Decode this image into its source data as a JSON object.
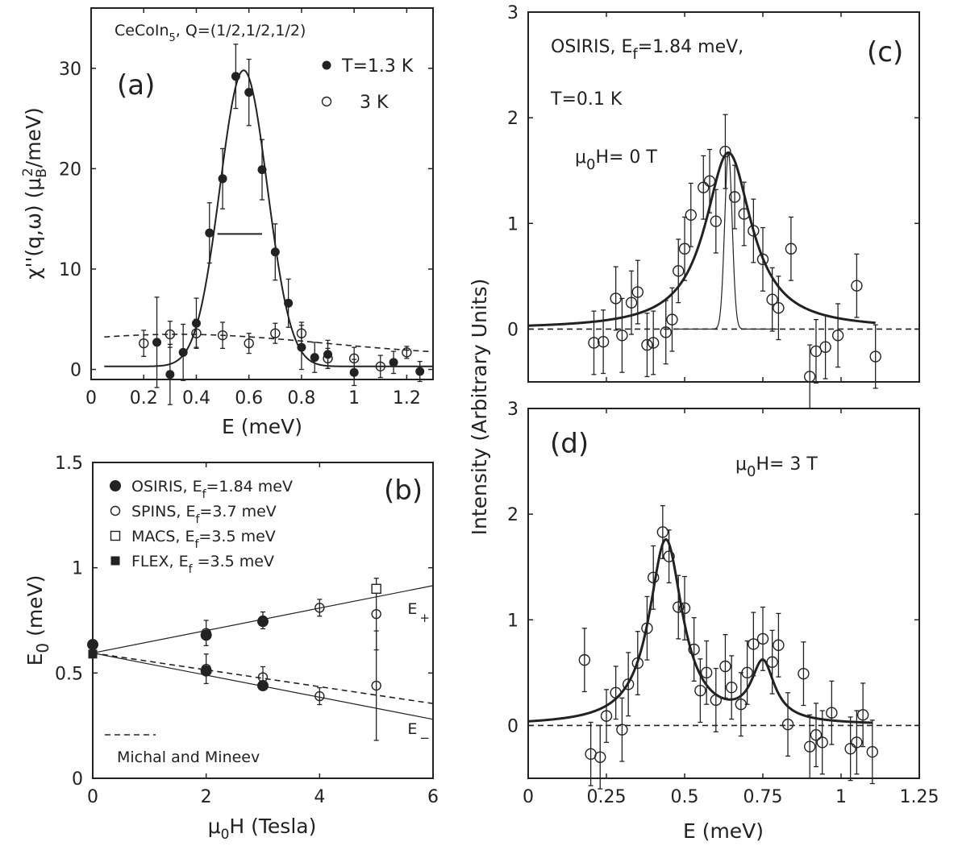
{
  "chart_data": [
    {
      "panel": "(a)",
      "type": "scatter",
      "title": "CeCoIn5, Q=(1/2,1/2,1/2)",
      "title_main": "CeCoIn",
      "title_sub": "5",
      "title_rest": ", Q=(1/2,1/2,1/2)",
      "xlabel": "E (meV)",
      "ylabel": "χ''(q,ω) (μB²/meV)",
      "ylabel_parts": {
        "main": "χ''(q,ω) (μ",
        "sub": "B",
        "sup": "2",
        "rest": "/meV)"
      },
      "xlim": [
        0,
        1.3
      ],
      "ylim": [
        -1,
        36
      ],
      "xticks": [
        0,
        0.2,
        0.4,
        0.6,
        0.8,
        1,
        1.2
      ],
      "xticklabels": [
        "0",
        "0.2",
        "0.4",
        "0.6",
        "0.8",
        "1",
        "1.2"
      ],
      "yticks": [
        0,
        10,
        20,
        30
      ],
      "yticklabels": [
        "0",
        "10",
        "20",
        "30"
      ],
      "legend": [
        "T=1.3 K",
        "3 K"
      ],
      "series": [
        {
          "name": "T=1.3 K",
          "marker": "filled-circle",
          "x": [
            0.25,
            0.3,
            0.35,
            0.4,
            0.45,
            0.5,
            0.55,
            0.6,
            0.65,
            0.7,
            0.75,
            0.8,
            0.85,
            0.9,
            1.0,
            1.15,
            1.25
          ],
          "y": [
            2.7,
            -0.5,
            1.7,
            4.6,
            13.6,
            19.0,
            29.2,
            27.6,
            19.9,
            11.7,
            6.6,
            2.2,
            1.2,
            1.5,
            -0.3,
            0.7,
            -0.2
          ],
          "err": [
            4.5,
            3.0,
            2.8,
            2.5,
            3.0,
            3.0,
            3.2,
            3.3,
            3.0,
            2.8,
            2.4,
            2.2,
            1.5,
            1.4,
            1.3,
            1.1,
            1.0
          ]
        },
        {
          "name": "3 K",
          "marker": "open-circle",
          "x": [
            0.2,
            0.3,
            0.4,
            0.5,
            0.6,
            0.7,
            0.8,
            0.9,
            1.0,
            1.1,
            1.2
          ],
          "y": [
            2.6,
            3.5,
            3.6,
            3.4,
            2.6,
            3.6,
            3.6,
            1.1,
            1.1,
            0.3,
            1.7
          ],
          "err": [
            1.3,
            1.3,
            1.4,
            1.3,
            1.0,
            1.0,
            1.1,
            1.0,
            1.1,
            1.1,
            0.6
          ]
        }
      ],
      "fit_1p3K": {
        "style": "solid",
        "center": 0.58,
        "width": 0.09,
        "amplitude": 29.8,
        "baseline": 0.3
      },
      "fit_3K": {
        "style": "dashed",
        "center": 0.33,
        "width": 0.55,
        "amplitude": 3.5,
        "baseline": 1.3
      },
      "resolution_bar": {
        "x": [
          0.48,
          0.65
        ],
        "y": 13.5
      }
    },
    {
      "panel": "(b)",
      "type": "scatter",
      "xlabel": "μ0H (Tesla)",
      "xlabel_parts": {
        "main": "μ",
        "sub": "0",
        "rest": "H (Tesla)"
      },
      "ylabel": "E0 (meV)",
      "ylabel_parts": {
        "main": "E",
        "sub": "0",
        "rest": " (meV)"
      },
      "xlim": [
        0,
        6
      ],
      "ylim": [
        0,
        1.5
      ],
      "xticks": [
        0,
        2,
        4,
        6
      ],
      "xticklabels": [
        "0",
        "2",
        "4",
        "6"
      ],
      "yticks": [
        0,
        0.5,
        1,
        1.5
      ],
      "yticklabels": [
        "0",
        "0.5",
        "1",
        "1.5"
      ],
      "legend": [
        {
          "marker": "filled-circle",
          "main": "OSIRIS, E",
          "sub": "f",
          "rest": "=1.84 meV"
        },
        {
          "marker": "open-circle",
          "main": "SPINS, E",
          "sub": "f",
          "rest": "=3.7 meV"
        },
        {
          "marker": "open-square",
          "main": "MACS, E",
          "sub": "f",
          "rest": "=3.5 meV"
        },
        {
          "marker": "filled-square",
          "main": "FLEX, E",
          "sub": "f",
          "rest": " =3.5 meV"
        }
      ],
      "series": [
        {
          "name": "OSIRIS",
          "marker": "filled-circle",
          "x": [
            0,
            2,
            2,
            3,
            3
          ],
          "y": [
            0.635,
            0.68,
            0.51,
            0.745,
            0.44
          ],
          "err": [
            0,
            0,
            0,
            0,
            0
          ]
        },
        {
          "name": "SPINS",
          "marker": "open-circle",
          "x": [
            2,
            2,
            3,
            3,
            4,
            4,
            5,
            5
          ],
          "y": [
            0.69,
            0.52,
            0.75,
            0.48,
            0.81,
            0.39,
            0.78,
            0.44
          ],
          "err": [
            0.06,
            0.07,
            0.04,
            0.05,
            0.04,
            0.04,
            0.17,
            0.26
          ]
        },
        {
          "name": "MACS",
          "marker": "open-square",
          "x": [
            5
          ],
          "y": [
            0.9
          ],
          "err": [
            0
          ]
        },
        {
          "name": "FLEX",
          "marker": "filled-square",
          "x": [
            0
          ],
          "y": [
            0.59
          ],
          "err": [
            0
          ]
        }
      ],
      "lines": [
        {
          "name": "E+",
          "style": "solid",
          "x": [
            0,
            6
          ],
          "y": [
            0.595,
            0.915
          ]
        },
        {
          "name": "E-",
          "style": "solid",
          "x": [
            0,
            6
          ],
          "y": [
            0.595,
            0.28
          ]
        },
        {
          "name": "Michal and Mineev",
          "style": "dashed",
          "x": [
            0,
            6
          ],
          "y": [
            0.595,
            0.355
          ]
        }
      ],
      "line_labels": [
        {
          "main": "E",
          "sub": "+",
          "x": 5.55,
          "y": 0.78
        },
        {
          "main": "E",
          "sub": "−",
          "x": 5.55,
          "y": 0.21
        }
      ],
      "dashed_legend": "Michal and Mineev"
    },
    {
      "panel": "(c)",
      "type": "scatter",
      "annotation_line1": {
        "main": "OSIRIS, E",
        "sub": "f",
        "rest": "=1.84 meV,"
      },
      "annotation_line2": "T=0.1 K",
      "field_label": {
        "main": "μ",
        "sub": "0",
        "rest": "H= 0 T"
      },
      "xlim": [
        0,
        1.25
      ],
      "ylim": [
        -0.5,
        3
      ],
      "yticks": [
        0,
        1,
        2,
        3
      ],
      "yticklabels": [
        "0",
        "1",
        "2",
        "3"
      ],
      "series": [
        {
          "name": "μ0H=0 T",
          "marker": "open-circle",
          "x": [
            0.21,
            0.24,
            0.28,
            0.3,
            0.33,
            0.35,
            0.38,
            0.4,
            0.44,
            0.46,
            0.48,
            0.5,
            0.52,
            0.56,
            0.58,
            0.6,
            0.63,
            0.66,
            0.69,
            0.72,
            0.75,
            0.78,
            0.8,
            0.84,
            0.9,
            0.92,
            0.95,
            0.99,
            1.05,
            1.11
          ],
          "y": [
            -0.13,
            -0.12,
            0.29,
            -0.06,
            0.25,
            0.35,
            -0.15,
            -0.13,
            -0.03,
            0.09,
            0.55,
            0.76,
            1.08,
            1.34,
            1.4,
            1.02,
            1.68,
            1.25,
            1.09,
            0.93,
            0.66,
            0.28,
            0.2,
            0.76,
            -0.45,
            -0.21,
            -0.17,
            -0.06,
            0.41,
            -0.26
          ],
          "err": [
            0.3,
            0.3,
            0.3,
            0.35,
            0.3,
            0.3,
            0.3,
            0.3,
            0.3,
            0.3,
            0.3,
            0.3,
            0.3,
            0.3,
            0.3,
            0.3,
            0.35,
            0.3,
            0.3,
            0.3,
            0.3,
            0.3,
            0.3,
            0.3,
            0.3,
            0.3,
            0.3,
            0.3,
            0.3,
            0.3
          ]
        }
      ],
      "fit_broad": {
        "style": "thick",
        "shape": "lorentzian",
        "center": 0.64,
        "hwhm": 0.09,
        "amplitude": 1.67
      },
      "fit_narrow": {
        "style": "thin",
        "shape": "gaussian",
        "center": 0.64,
        "width": 0.012,
        "amplitude": 1.67
      }
    },
    {
      "panel": "(d)",
      "type": "scatter",
      "field_label": {
        "main": "μ",
        "sub": "0",
        "rest": "H= 3 T"
      },
      "xlabel": "E (meV)",
      "shared_ylabel": "Intensity (Arbitrary Units)",
      "xlim": [
        0,
        1.25
      ],
      "ylim": [
        -0.5,
        3
      ],
      "xticks": [
        0,
        0.25,
        0.5,
        0.75,
        1,
        1.25
      ],
      "xticklabels": [
        "0",
        "0.25",
        "0.5",
        "0.75",
        "1",
        "1.25"
      ],
      "yticks": [
        0,
        1,
        2,
        3
      ],
      "yticklabels": [
        "0",
        "1",
        "2",
        "3"
      ],
      "series": [
        {
          "name": "μ0H=3 T",
          "marker": "open-circle",
          "x": [
            0.18,
            0.2,
            0.23,
            0.25,
            0.28,
            0.3,
            0.32,
            0.35,
            0.38,
            0.4,
            0.43,
            0.45,
            0.48,
            0.5,
            0.53,
            0.55,
            0.57,
            0.6,
            0.63,
            0.65,
            0.68,
            0.7,
            0.72,
            0.75,
            0.78,
            0.8,
            0.83,
            0.88,
            0.9,
            0.92,
            0.94,
            0.97,
            1.03,
            1.05,
            1.07,
            1.1
          ],
          "y": [
            0.62,
            -0.27,
            -0.3,
            0.09,
            0.31,
            -0.04,
            0.39,
            0.59,
            0.92,
            1.4,
            1.83,
            1.6,
            1.12,
            1.11,
            0.72,
            0.33,
            0.5,
            0.24,
            0.56,
            0.36,
            0.2,
            0.5,
            0.77,
            0.82,
            0.6,
            0.76,
            0.01,
            0.49,
            -0.2,
            -0.09,
            -0.16,
            0.12,
            -0.22,
            -0.16,
            0.1,
            -0.25
          ],
          "err": [
            0.3,
            0.3,
            0.3,
            0.25,
            0.25,
            0.3,
            0.3,
            0.3,
            0.3,
            0.3,
            0.25,
            0.25,
            0.3,
            0.3,
            0.3,
            0.3,
            0.3,
            0.3,
            0.3,
            0.3,
            0.3,
            0.3,
            0.3,
            0.3,
            0.3,
            0.3,
            0.3,
            0.3,
            0.3,
            0.3,
            0.3,
            0.3,
            0.3,
            0.3,
            0.3,
            0.3
          ]
        }
      ],
      "fit": {
        "style": "thick",
        "shape": "double-lorentzian",
        "peaks": [
          {
            "center": 0.44,
            "hwhm": 0.065,
            "amplitude": 1.75
          },
          {
            "center": 0.75,
            "hwhm": 0.045,
            "amplitude": 0.55
          }
        ]
      }
    }
  ]
}
